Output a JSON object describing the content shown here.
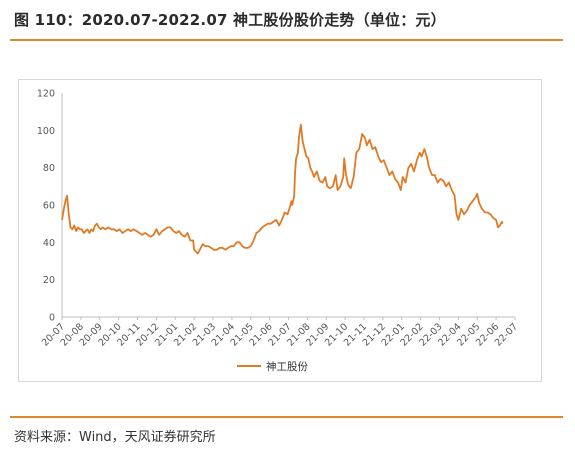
{
  "header": {
    "title": "图 110：2020.07-2022.07 神工股份股价走势（单位：元）"
  },
  "footer": {
    "source": "资料来源：Wind，天风证券研究所"
  },
  "colors": {
    "accent": "#e0862b",
    "series": "#e07b25"
  },
  "chart_data": {
    "type": "line",
    "ylim": [
      0,
      120
    ],
    "yticks": [
      "0",
      "20",
      "40",
      "60",
      "80",
      "100",
      "120"
    ],
    "xticks": [
      "20-07",
      "20-08",
      "20-09",
      "20-10",
      "20-11",
      "20-12",
      "21-01",
      "21-02",
      "21-03",
      "21-04",
      "21-05",
      "21-06",
      "21-07",
      "21-08",
      "21-09",
      "21-10",
      "21-11",
      "21-12",
      "22-01",
      "22-02",
      "22-03",
      "22-04",
      "22-05",
      "22-06",
      "22-07"
    ],
    "grid": false,
    "legend": "bottom-center",
    "series": [
      {
        "name": "神工股份",
        "points": [
          [
            0.0,
            52
          ],
          [
            0.1,
            58
          ],
          [
            0.2,
            63
          ],
          [
            0.27,
            65
          ],
          [
            0.35,
            56
          ],
          [
            0.45,
            48
          ],
          [
            0.55,
            47
          ],
          [
            0.65,
            49
          ],
          [
            0.75,
            46
          ],
          [
            0.85,
            48
          ],
          [
            0.95,
            47
          ],
          [
            1.05,
            47
          ],
          [
            1.15,
            45
          ],
          [
            1.25,
            46
          ],
          [
            1.35,
            47
          ],
          [
            1.45,
            45
          ],
          [
            1.55,
            47
          ],
          [
            1.65,
            46
          ],
          [
            1.75,
            49
          ],
          [
            1.85,
            50
          ],
          [
            1.95,
            48
          ],
          [
            2.05,
            47
          ],
          [
            2.15,
            48
          ],
          [
            2.3,
            47
          ],
          [
            2.45,
            48
          ],
          [
            2.6,
            47
          ],
          [
            2.75,
            47
          ],
          [
            2.9,
            46
          ],
          [
            3.05,
            47
          ],
          [
            3.2,
            45
          ],
          [
            3.35,
            46
          ],
          [
            3.5,
            47
          ],
          [
            3.65,
            46
          ],
          [
            3.8,
            47
          ],
          [
            3.95,
            46
          ],
          [
            4.1,
            45
          ],
          [
            4.25,
            44
          ],
          [
            4.4,
            45
          ],
          [
            4.55,
            44
          ],
          [
            4.7,
            43
          ],
          [
            4.85,
            44
          ],
          [
            5.0,
            47
          ],
          [
            5.15,
            44
          ],
          [
            5.3,
            46
          ],
          [
            5.45,
            47
          ],
          [
            5.6,
            48
          ],
          [
            5.75,
            48
          ],
          [
            5.9,
            46
          ],
          [
            6.05,
            45
          ],
          [
            6.2,
            46
          ],
          [
            6.35,
            44
          ],
          [
            6.5,
            43
          ],
          [
            6.65,
            45
          ],
          [
            6.8,
            41
          ],
          [
            6.95,
            41
          ],
          [
            7.0,
            36
          ],
          [
            7.1,
            35
          ],
          [
            7.2,
            34
          ],
          [
            7.3,
            36
          ],
          [
            7.45,
            39
          ],
          [
            7.6,
            38
          ],
          [
            7.75,
            38
          ],
          [
            7.9,
            37
          ],
          [
            8.05,
            36
          ],
          [
            8.2,
            36
          ],
          [
            8.35,
            37
          ],
          [
            8.5,
            37
          ],
          [
            8.65,
            36
          ],
          [
            8.8,
            37
          ],
          [
            8.95,
            38
          ],
          [
            9.1,
            38
          ],
          [
            9.25,
            40
          ],
          [
            9.4,
            40
          ],
          [
            9.55,
            38
          ],
          [
            9.7,
            37
          ],
          [
            9.85,
            37
          ],
          [
            10.0,
            38
          ],
          [
            10.15,
            41
          ],
          [
            10.3,
            45
          ],
          [
            10.45,
            46
          ],
          [
            10.6,
            48
          ],
          [
            10.75,
            49
          ],
          [
            10.9,
            50
          ],
          [
            11.05,
            50
          ],
          [
            11.2,
            51
          ],
          [
            11.35,
            52
          ],
          [
            11.5,
            49
          ],
          [
            11.65,
            52
          ],
          [
            11.8,
            56
          ],
          [
            11.95,
            55
          ],
          [
            12.05,
            58
          ],
          [
            12.15,
            62
          ],
          [
            12.2,
            60
          ],
          [
            12.3,
            65
          ],
          [
            12.35,
            78
          ],
          [
            12.4,
            85
          ],
          [
            12.5,
            88
          ],
          [
            12.55,
            96
          ],
          [
            12.65,
            103
          ],
          [
            12.75,
            94
          ],
          [
            12.85,
            90
          ],
          [
            12.95,
            86
          ],
          [
            13.05,
            85
          ],
          [
            13.15,
            80
          ],
          [
            13.25,
            78
          ],
          [
            13.35,
            75
          ],
          [
            13.5,
            78
          ],
          [
            13.65,
            73
          ],
          [
            13.8,
            72
          ],
          [
            13.95,
            75
          ],
          [
            14.05,
            70
          ],
          [
            14.2,
            69
          ],
          [
            14.35,
            70
          ],
          [
            14.5,
            76
          ],
          [
            14.6,
            68
          ],
          [
            14.75,
            70
          ],
          [
            14.9,
            75
          ],
          [
            14.95,
            85
          ],
          [
            15.05,
            76
          ],
          [
            15.15,
            71
          ],
          [
            15.3,
            69
          ],
          [
            15.45,
            75
          ],
          [
            15.6,
            88
          ],
          [
            15.75,
            90
          ],
          [
            15.9,
            98
          ],
          [
            16.05,
            96
          ],
          [
            16.15,
            92
          ],
          [
            16.3,
            95
          ],
          [
            16.45,
            90
          ],
          [
            16.6,
            91
          ],
          [
            16.75,
            86
          ],
          [
            16.9,
            83
          ],
          [
            17.05,
            84
          ],
          [
            17.2,
            80
          ],
          [
            17.35,
            76
          ],
          [
            17.5,
            78
          ],
          [
            17.65,
            74
          ],
          [
            17.8,
            72
          ],
          [
            17.95,
            68
          ],
          [
            18.05,
            75
          ],
          [
            18.2,
            72
          ],
          [
            18.35,
            80
          ],
          [
            18.5,
            82
          ],
          [
            18.65,
            78
          ],
          [
            18.8,
            84
          ],
          [
            18.95,
            88
          ],
          [
            19.05,
            86
          ],
          [
            19.2,
            90
          ],
          [
            19.35,
            85
          ],
          [
            19.45,
            80
          ],
          [
            19.6,
            76
          ],
          [
            19.75,
            76
          ],
          [
            19.9,
            72
          ],
          [
            20.05,
            74
          ],
          [
            20.2,
            73
          ],
          [
            20.35,
            70
          ],
          [
            20.5,
            72
          ],
          [
            20.65,
            68
          ],
          [
            20.8,
            65
          ],
          [
            20.9,
            55
          ],
          [
            21.0,
            52
          ],
          [
            21.15,
            58
          ],
          [
            21.3,
            55
          ],
          [
            21.45,
            57
          ],
          [
            21.6,
            60
          ],
          [
            21.75,
            62
          ],
          [
            21.9,
            64
          ],
          [
            22.0,
            66
          ],
          [
            22.1,
            61
          ],
          [
            22.25,
            58
          ],
          [
            22.4,
            56
          ],
          [
            22.55,
            56
          ],
          [
            22.7,
            55
          ],
          [
            22.85,
            53
          ],
          [
            23.0,
            52
          ],
          [
            23.1,
            48
          ],
          [
            23.2,
            49
          ],
          [
            23.3,
            51
          ],
          [
            23.35,
            50
          ]
        ]
      }
    ]
  }
}
